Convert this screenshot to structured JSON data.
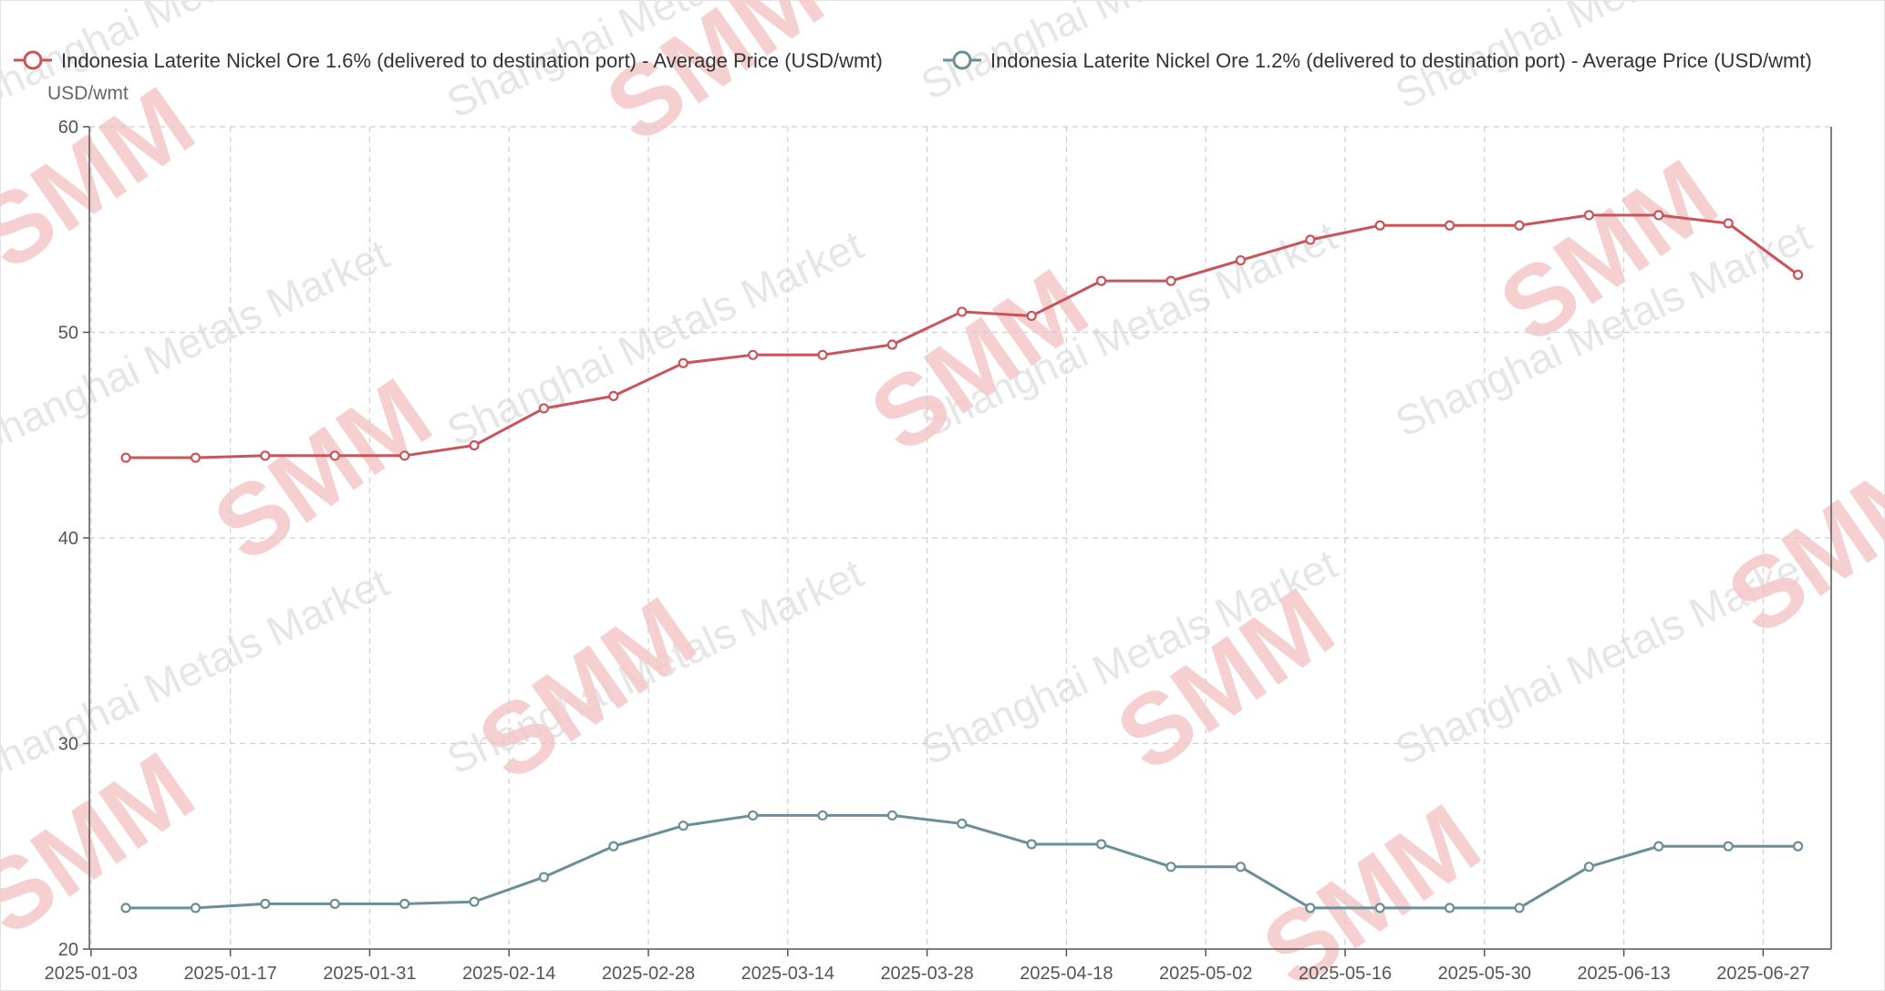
{
  "chart_data": {
    "type": "line",
    "unit_label": "USD/wmt",
    "ylim": [
      20,
      60
    ],
    "yticks": [
      20,
      30,
      40,
      50,
      60
    ],
    "x_tick_labels": [
      "2025-01-03",
      "2025-01-17",
      "2025-01-31",
      "2025-02-14",
      "2025-02-28",
      "2025-03-14",
      "2025-03-28",
      "2025-04-18",
      "2025-05-02",
      "2025-05-16",
      "2025-05-30",
      "2025-06-13",
      "2025-06-27"
    ],
    "grid": true,
    "legend_position": "top",
    "x_points": 25,
    "series": [
      {
        "name": "Indonesia Laterite Nickel Ore 1.6% (delivered to destination port) - Average Price  (USD/wmt)",
        "color": "#c9545a",
        "values": [
          43.9,
          43.9,
          44.0,
          44.0,
          44.0,
          44.5,
          46.3,
          46.9,
          48.5,
          48.9,
          48.9,
          49.4,
          51.0,
          50.8,
          52.5,
          52.5,
          53.5,
          54.5,
          55.2,
          55.2,
          55.2,
          55.7,
          55.7,
          55.3,
          52.8
        ]
      },
      {
        "name": "Indonesia Laterite Nickel Ore 1.2% (delivered to destination port)  - Average Price  (USD/wmt)",
        "color": "#6b8f96",
        "values": [
          22.0,
          22.0,
          22.2,
          22.2,
          22.2,
          22.3,
          23.5,
          25.0,
          26.0,
          26.5,
          26.5,
          26.5,
          26.1,
          25.1,
          25.1,
          24.0,
          24.0,
          22.0,
          22.0,
          22.0,
          22.0,
          24.0,
          25.0,
          25.0,
          25.0
        ]
      }
    ]
  },
  "watermark": {
    "text": "Shanghai Metals Market",
    "logo": "SMM"
  }
}
